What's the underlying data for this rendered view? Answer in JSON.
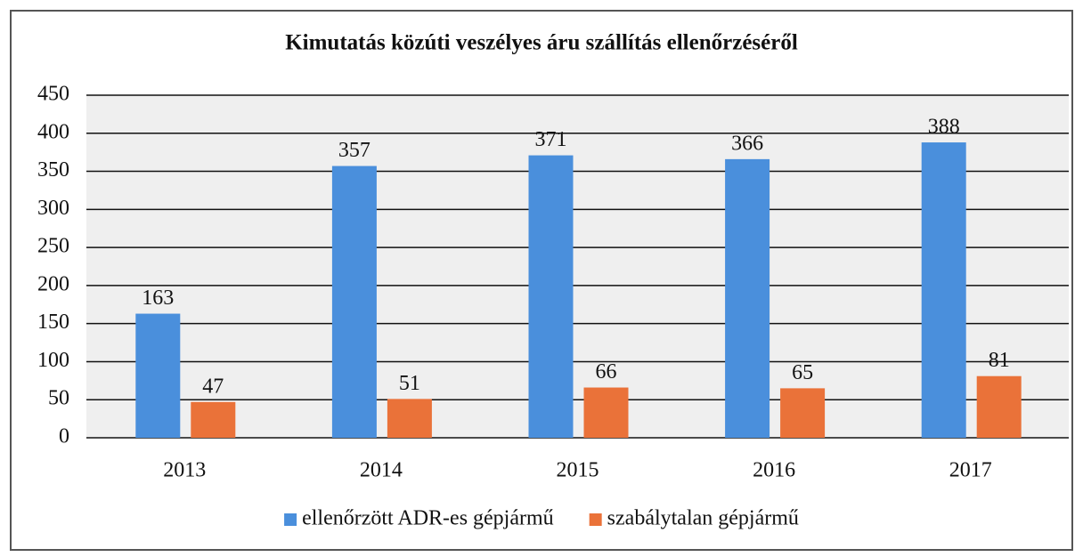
{
  "chart_data": {
    "type": "bar",
    "title": "Kimutatás közúti veszélyes áru szállítás ellenőrzéséről",
    "categories": [
      "2013",
      "2014",
      "2015",
      "2016",
      "2017"
    ],
    "series": [
      {
        "name": "ellenőrzött ADR-es gépjármű",
        "color": "#4a8fdc",
        "values": [
          163,
          357,
          371,
          366,
          388
        ]
      },
      {
        "name": "szabálytalan gépjármű",
        "color": "#ea7239",
        "values": [
          47,
          51,
          66,
          65,
          81
        ]
      }
    ],
    "ylim": [
      0,
      450
    ],
    "yticks": [
      0,
      50,
      100,
      150,
      200,
      250,
      300,
      350,
      400,
      450
    ],
    "grid": true,
    "legend": "bottom"
  }
}
